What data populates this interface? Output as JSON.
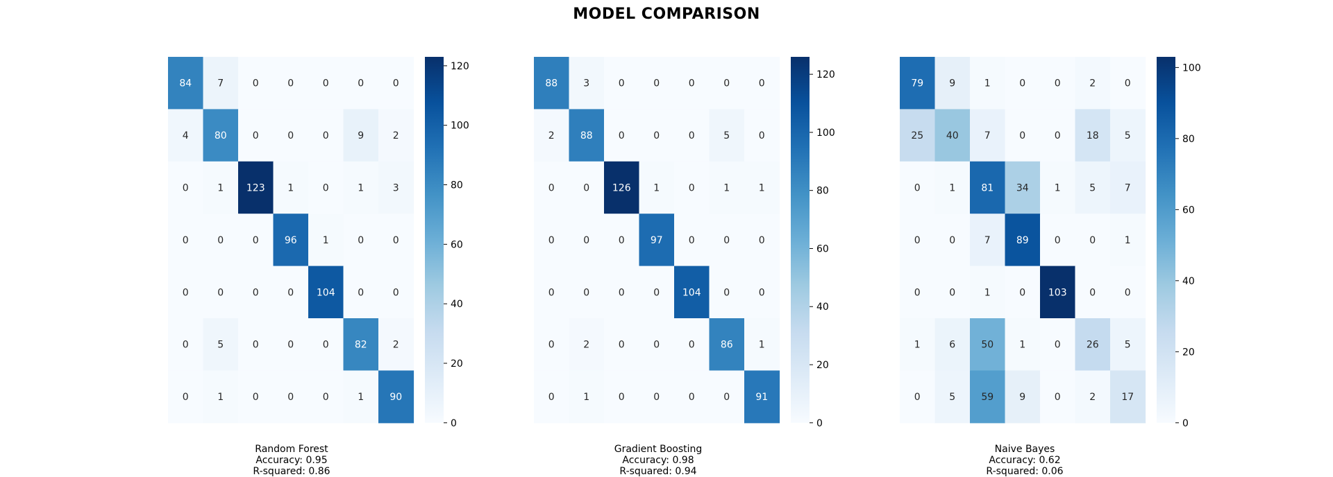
{
  "title": "MODEL COMPARISON",
  "colormap": "Blues",
  "chart_data": [
    {
      "type": "heatmap",
      "model": "Random Forest",
      "accuracy_label": "Accuracy: 0.95",
      "r2_label": "R-squared: 0.86",
      "colorbar_max": 123,
      "colorbar_ticks": [
        0,
        20,
        40,
        60,
        80,
        100,
        120
      ],
      "matrix": [
        [
          84,
          7,
          0,
          0,
          0,
          0,
          0
        ],
        [
          4,
          80,
          0,
          0,
          0,
          9,
          2
        ],
        [
          0,
          1,
          123,
          1,
          0,
          1,
          3
        ],
        [
          0,
          0,
          0,
          96,
          1,
          0,
          0
        ],
        [
          0,
          0,
          0,
          0,
          104,
          0,
          0
        ],
        [
          0,
          5,
          0,
          0,
          0,
          82,
          2
        ],
        [
          0,
          1,
          0,
          0,
          0,
          1,
          90
        ]
      ]
    },
    {
      "type": "heatmap",
      "model": "Gradient Boosting",
      "accuracy_label": "Accuracy: 0.98",
      "r2_label": "R-squared: 0.94",
      "colorbar_max": 126,
      "colorbar_ticks": [
        0,
        20,
        40,
        60,
        80,
        100,
        120
      ],
      "matrix": [
        [
          88,
          3,
          0,
          0,
          0,
          0,
          0
        ],
        [
          2,
          88,
          0,
          0,
          0,
          5,
          0
        ],
        [
          0,
          0,
          126,
          1,
          0,
          1,
          1
        ],
        [
          0,
          0,
          0,
          97,
          0,
          0,
          0
        ],
        [
          0,
          0,
          0,
          0,
          104,
          0,
          0
        ],
        [
          0,
          2,
          0,
          0,
          0,
          86,
          1
        ],
        [
          0,
          1,
          0,
          0,
          0,
          0,
          91
        ]
      ]
    },
    {
      "type": "heatmap",
      "model": "Naive Bayes",
      "accuracy_label": "Accuracy: 0.62",
      "r2_label": "R-squared: 0.06",
      "colorbar_max": 103,
      "colorbar_ticks": [
        0,
        20,
        40,
        60,
        80,
        100
      ],
      "matrix": [
        [
          79,
          9,
          1,
          0,
          0,
          2,
          0
        ],
        [
          25,
          40,
          7,
          0,
          0,
          18,
          5
        ],
        [
          0,
          1,
          81,
          34,
          1,
          5,
          7
        ],
        [
          0,
          0,
          7,
          89,
          0,
          0,
          1
        ],
        [
          0,
          0,
          1,
          0,
          103,
          0,
          0
        ],
        [
          1,
          6,
          50,
          1,
          0,
          26,
          5
        ],
        [
          0,
          5,
          59,
          9,
          0,
          2,
          17
        ]
      ]
    }
  ]
}
